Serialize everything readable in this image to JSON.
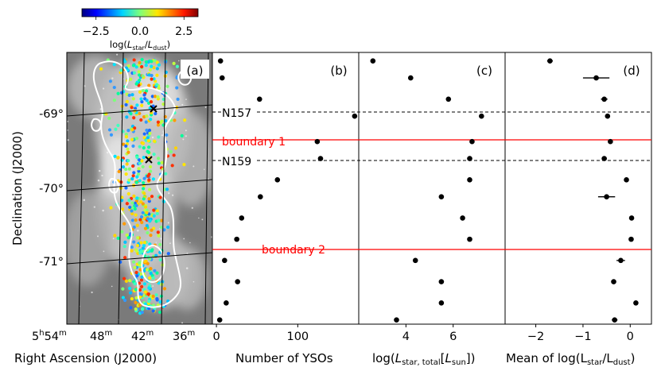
{
  "colorbar": {
    "label_main": "log(",
    "label_L": "L",
    "label_sub1": "star",
    "label_slash": "/",
    "label_L2": "L",
    "label_sub2": "dust",
    "label_close": ")",
    "ticks": [
      -2.5,
      0.0,
      2.5
    ],
    "tick_labels": [
      "−2.5",
      "0.0",
      "2.5"
    ],
    "range": [
      -3.3,
      3.3
    ]
  },
  "panels": {
    "a": {
      "tag": "(a)"
    },
    "b": {
      "tag": "(b)"
    },
    "c": {
      "tag": "(c)"
    },
    "d": {
      "tag": "(d)"
    }
  },
  "axes": {
    "ylabel": "Declination (J2000)",
    "dec_ticks": [
      "-69°",
      "-70°",
      "-71°"
    ],
    "ra_label": "Right Ascension (J2000)",
    "ra_ticks": [
      {
        "h": "5",
        "hs": "h",
        "m": "54",
        "ms": "m"
      },
      {
        "h": "",
        "hs": "",
        "m": "48",
        "ms": "m"
      },
      {
        "h": "",
        "hs": "",
        "m": "42",
        "ms": "m"
      },
      {
        "h": "",
        "hs": "",
        "m": "36",
        "ms": "m"
      }
    ],
    "b_xlabel": "Number of YSOs",
    "c_xlabel_pre": "log(",
    "c_xlabel_L": "L",
    "c_xlabel_sub": "star, total",
    "c_xlabel_mid": "[",
    "c_xlabel_L2": "L",
    "c_xlabel_sub2": "sun",
    "c_xlabel_post": "])",
    "d_xlabel": "Mean of log(L",
    "d_xlabel_sub1": "star",
    "d_xlabel_mid": "/L",
    "d_xlabel_sub2": "dust",
    "d_xlabel_post": ")"
  },
  "annotations": {
    "n157": "N157",
    "n159": "N159",
    "boundary1": "boundary 1",
    "boundary2": "boundary 2",
    "line_color": "#ff0000"
  },
  "chart_data": [
    {
      "panel": "b",
      "type": "scatter",
      "xlabel": "Number of YSOs",
      "xlim": [
        -5,
        175
      ],
      "xticks": [
        0,
        100
      ],
      "ylim": [
        -71.5,
        -68.3
      ],
      "y": [
        -68.4,
        -68.6,
        -68.85,
        -69.05,
        -69.35,
        -69.55,
        -69.8,
        -70.0,
        -70.25,
        -70.5,
        -70.75,
        -71.0,
        -71.25,
        -71.45
      ],
      "values": [
        5,
        7,
        53,
        170,
        124,
        128,
        75,
        54,
        31,
        25,
        10,
        26,
        12,
        4
      ]
    },
    {
      "panel": "c",
      "type": "scatter",
      "xlabel": "log(Lstar, total[Lsun])",
      "xlim": [
        2.0,
        8.2
      ],
      "xticks": [
        4,
        6
      ],
      "ylim": [
        -71.5,
        -68.3
      ],
      "y": [
        -68.4,
        -68.6,
        -68.85,
        -69.05,
        -69.35,
        -69.55,
        -69.8,
        -70.0,
        -70.25,
        -70.5,
        -70.75,
        -71.0,
        -71.25,
        -71.45
      ],
      "values": [
        2.6,
        4.2,
        5.8,
        7.2,
        6.8,
        6.7,
        6.7,
        5.5,
        6.4,
        6.7,
        4.4,
        5.5,
        5.5,
        3.6
      ]
    },
    {
      "panel": "d",
      "type": "scatter",
      "xlabel": "Mean of log(Lstar/Ldust)",
      "xlim": [
        -2.65,
        0.45
      ],
      "xticks": [
        -2,
        -1,
        0
      ],
      "ylim": [
        -71.5,
        -68.3
      ],
      "y": [
        -68.4,
        -68.6,
        -68.85,
        -69.05,
        -69.35,
        -69.55,
        -69.8,
        -70.0,
        -70.25,
        -70.5,
        -70.75,
        -71.0,
        -71.25,
        -71.45
      ],
      "values": [
        -1.7,
        -0.72,
        -0.55,
        -0.48,
        -0.42,
        -0.55,
        -0.08,
        -0.5,
        0.03,
        0.02,
        -0.2,
        -0.35,
        0.12,
        -0.33
      ],
      "errors": [
        0.06,
        0.28,
        0.07,
        0.04,
        0.05,
        0.05,
        0.05,
        0.18,
        0.03,
        0.03,
        0.09,
        0.04,
        0.03,
        0.06
      ]
    }
  ]
}
